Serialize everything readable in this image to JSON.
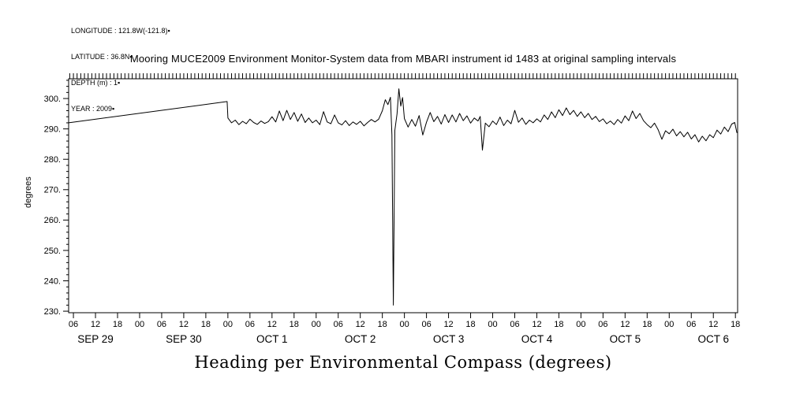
{
  "page": {
    "background": "#ffffff",
    "foreground": "#000000"
  },
  "metadata_block": {
    "lines": [
      "LONGITUDE : 121.8W(-121.8)▪",
      "LATITUDE : 36.8N▪",
      "DEPTH (m) : 1▪",
      "YEAR : 2009▪"
    ]
  },
  "chart_data": {
    "type": "line",
    "title": "Mooring MUCE2009 Environment Monitor-System data from MBARI instrument id 1483 at original sampling intervals",
    "xlabel": "Heading per Environmental Compass (degrees)",
    "ylabel": "degrees",
    "xlim": [
      4.7,
      186.6
    ],
    "ylim": [
      229.5,
      306.5
    ],
    "grid": false,
    "legend": "none",
    "line_color": "#000000",
    "top_minor_tick_step_hours": 1,
    "y_minor_tick_step": 2,
    "y_ticks": {
      "values": [
        230,
        240,
        250,
        260,
        270,
        280,
        290,
        300
      ],
      "labels": [
        "230.",
        "240.",
        "250.",
        "260.",
        "270.",
        "280.",
        "290.",
        "300."
      ]
    },
    "x_ticks": {
      "hours": [
        6,
        12,
        18,
        24,
        30,
        36,
        42,
        48,
        54,
        60,
        66,
        72,
        78,
        84,
        90,
        96,
        102,
        108,
        114,
        120,
        126,
        132,
        138,
        144,
        150,
        156,
        162,
        168,
        174,
        180,
        186
      ],
      "labels": [
        "06",
        "12",
        "18",
        "00",
        "06",
        "12",
        "18",
        "00",
        "06",
        "12",
        "18",
        "00",
        "06",
        "12",
        "18",
        "00",
        "06",
        "12",
        "18",
        "00",
        "06",
        "12",
        "18",
        "00",
        "06",
        "12",
        "18",
        "00",
        "06",
        "12",
        "18"
      ]
    },
    "day_labels": [
      {
        "hour": 12,
        "label": "SEP 29"
      },
      {
        "hour": 36,
        "label": "SEP 30"
      },
      {
        "hour": 60,
        "label": "OCT 1"
      },
      {
        "hour": 84,
        "label": "OCT 2"
      },
      {
        "hour": 108,
        "label": "OCT 3"
      },
      {
        "hour": 132,
        "label": "OCT 4"
      },
      {
        "hour": 156,
        "label": "OCT 5"
      },
      {
        "hour": 180,
        "label": "OCT 6"
      }
    ],
    "series": [
      {
        "name": "heading",
        "points": [
          [
            4.7,
            292.0
          ],
          [
            47.8,
            299.0
          ],
          [
            48.0,
            293.6
          ],
          [
            49,
            292.0
          ],
          [
            50,
            292.9
          ],
          [
            51,
            291.4
          ],
          [
            52,
            292.5
          ],
          [
            53,
            291.7
          ],
          [
            54,
            293.2
          ],
          [
            55,
            292.1
          ],
          [
            56,
            291.5
          ],
          [
            57,
            292.6
          ],
          [
            58,
            291.8
          ],
          [
            59,
            292.4
          ],
          [
            60,
            294.0
          ],
          [
            61,
            292.3
          ],
          [
            62,
            295.9
          ],
          [
            63,
            292.7
          ],
          [
            64,
            296.1
          ],
          [
            65,
            293.1
          ],
          [
            66,
            295.4
          ],
          [
            67,
            292.5
          ],
          [
            68,
            294.9
          ],
          [
            69,
            292.1
          ],
          [
            70,
            293.6
          ],
          [
            71,
            292.0
          ],
          [
            72,
            292.9
          ],
          [
            73,
            291.4
          ],
          [
            74,
            295.7
          ],
          [
            75,
            292.3
          ],
          [
            76,
            291.7
          ],
          [
            77,
            294.6
          ],
          [
            78,
            292.0
          ],
          [
            79,
            291.3
          ],
          [
            80,
            292.7
          ],
          [
            81,
            291.1
          ],
          [
            82,
            292.3
          ],
          [
            83,
            291.5
          ],
          [
            84,
            292.5
          ],
          [
            85,
            291.0
          ],
          [
            86,
            292.1
          ],
          [
            87,
            293.1
          ],
          [
            88,
            292.3
          ],
          [
            89,
            293.2
          ],
          [
            90,
            296.0
          ],
          [
            90.8,
            299.6
          ],
          [
            91.5,
            298.0
          ],
          [
            92.2,
            300.4
          ],
          [
            92.6,
            288.0
          ],
          [
            93,
            232.0
          ],
          [
            93.4,
            289.5
          ],
          [
            94,
            295.0
          ],
          [
            94.5,
            303.2
          ],
          [
            95,
            297.5
          ],
          [
            95.5,
            300.3
          ],
          [
            96,
            293.4
          ],
          [
            97,
            290.6
          ],
          [
            98,
            293.1
          ],
          [
            99,
            290.9
          ],
          [
            100,
            294.4
          ],
          [
            101,
            288.0
          ],
          [
            102,
            292.2
          ],
          [
            103,
            295.4
          ],
          [
            104,
            292.4
          ],
          [
            105,
            294.1
          ],
          [
            106,
            291.6
          ],
          [
            107,
            294.7
          ],
          [
            108,
            292.1
          ],
          [
            109,
            294.6
          ],
          [
            110,
            292.3
          ],
          [
            111,
            295.1
          ],
          [
            112,
            292.7
          ],
          [
            113,
            294.3
          ],
          [
            114,
            291.9
          ],
          [
            115,
            293.6
          ],
          [
            116,
            292.6
          ],
          [
            116.6,
            294.1
          ],
          [
            117.2,
            283.0
          ],
          [
            118,
            291.9
          ],
          [
            119,
            290.7
          ],
          [
            120,
            292.6
          ],
          [
            121,
            291.4
          ],
          [
            122,
            293.9
          ],
          [
            123,
            291.1
          ],
          [
            124,
            292.9
          ],
          [
            125,
            291.7
          ],
          [
            126,
            296.1
          ],
          [
            127,
            292.2
          ],
          [
            128,
            293.6
          ],
          [
            129,
            291.5
          ],
          [
            130,
            292.9
          ],
          [
            131,
            292.0
          ],
          [
            132,
            293.3
          ],
          [
            133,
            292.3
          ],
          [
            134,
            294.6
          ],
          [
            135,
            293.1
          ],
          [
            136,
            295.6
          ],
          [
            137,
            293.7
          ],
          [
            138,
            296.3
          ],
          [
            139,
            294.4
          ],
          [
            140,
            296.9
          ],
          [
            141,
            294.7
          ],
          [
            142,
            296.1
          ],
          [
            143,
            294.1
          ],
          [
            144,
            295.6
          ],
          [
            145,
            293.7
          ],
          [
            146,
            295.1
          ],
          [
            147,
            293.1
          ],
          [
            148,
            294.1
          ],
          [
            149,
            292.4
          ],
          [
            150,
            293.3
          ],
          [
            151,
            291.7
          ],
          [
            152,
            292.6
          ],
          [
            153,
            291.4
          ],
          [
            154,
            293.1
          ],
          [
            155,
            291.9
          ],
          [
            156,
            294.3
          ],
          [
            157,
            292.7
          ],
          [
            158,
            295.9
          ],
          [
            159,
            293.4
          ],
          [
            160,
            295.1
          ],
          [
            161,
            292.7
          ],
          [
            162,
            291.4
          ],
          [
            163,
            290.4
          ],
          [
            164,
            291.9
          ],
          [
            165,
            289.7
          ],
          [
            166,
            286.6
          ],
          [
            167,
            289.4
          ],
          [
            168,
            288.4
          ],
          [
            169,
            289.9
          ],
          [
            170,
            287.7
          ],
          [
            171,
            289.1
          ],
          [
            172,
            287.4
          ],
          [
            173,
            288.9
          ],
          [
            174,
            286.7
          ],
          [
            175,
            288.1
          ],
          [
            176,
            285.7
          ],
          [
            177,
            287.6
          ],
          [
            178,
            286.1
          ],
          [
            179,
            288.1
          ],
          [
            180,
            287.1
          ],
          [
            181,
            289.6
          ],
          [
            182,
            288.3
          ],
          [
            183,
            290.6
          ],
          [
            184,
            289.1
          ],
          [
            185,
            291.6
          ],
          [
            185.8,
            292.1
          ],
          [
            186.4,
            288.7
          ]
        ]
      }
    ]
  }
}
